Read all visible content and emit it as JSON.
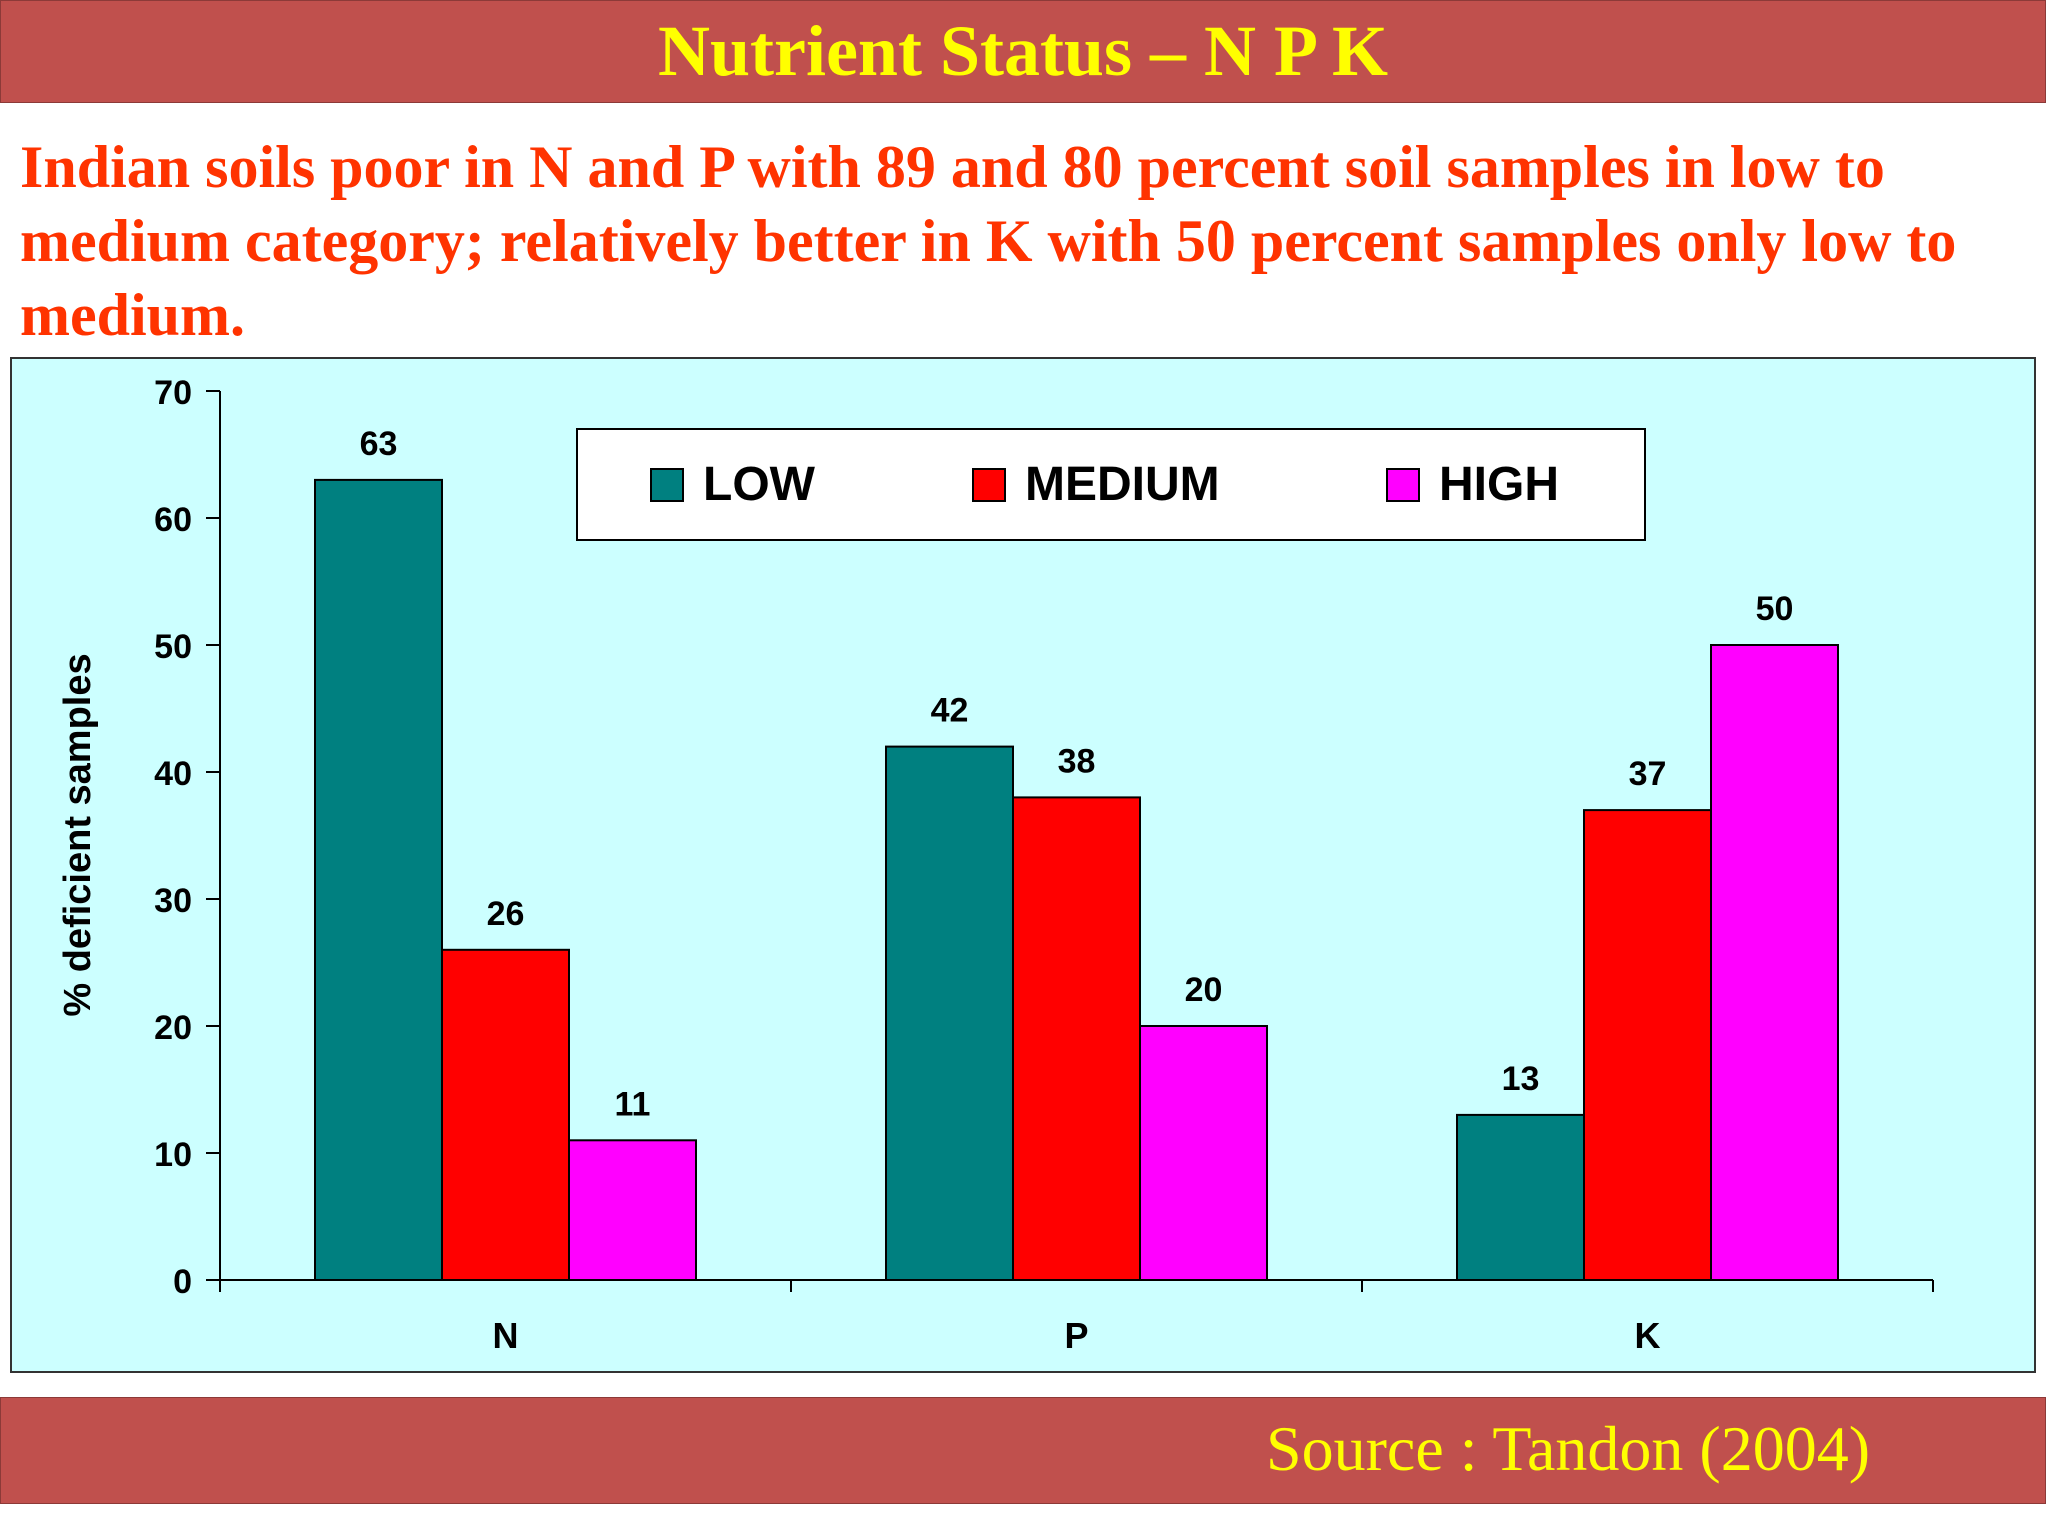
{
  "slide": {
    "title": "Nutrient Status – N P K",
    "subtitle": "Indian soils poor in N and P with 89 and 80 percent soil samples in low to medium category; relatively better in K with 50 percent samples only low to medium.",
    "source": "Source : Tandon (2004)"
  },
  "colors": {
    "title_bar": "#c0504d",
    "title_text": "#ffff00",
    "subtitle_text": "#ff3300",
    "plot_background": "#ccffff"
  },
  "chart_data": {
    "type": "bar",
    "title": "",
    "xlabel": "",
    "ylabel": "% deficient samples",
    "categories": [
      "N",
      "P",
      "K"
    ],
    "series": [
      {
        "name": "LOW",
        "color": "#008080",
        "values": [
          63,
          42,
          13
        ]
      },
      {
        "name": "MEDIUM",
        "color": "#ff0000",
        "values": [
          26,
          38,
          37
        ]
      },
      {
        "name": "HIGH",
        "color": "#ff00ff",
        "values": [
          11,
          20,
          50
        ]
      }
    ],
    "ylim": [
      0,
      70
    ],
    "yticks": [
      0,
      10,
      20,
      30,
      40,
      50,
      60,
      70
    ],
    "data_labels": true,
    "grid": false,
    "legend_position": "top-center"
  }
}
